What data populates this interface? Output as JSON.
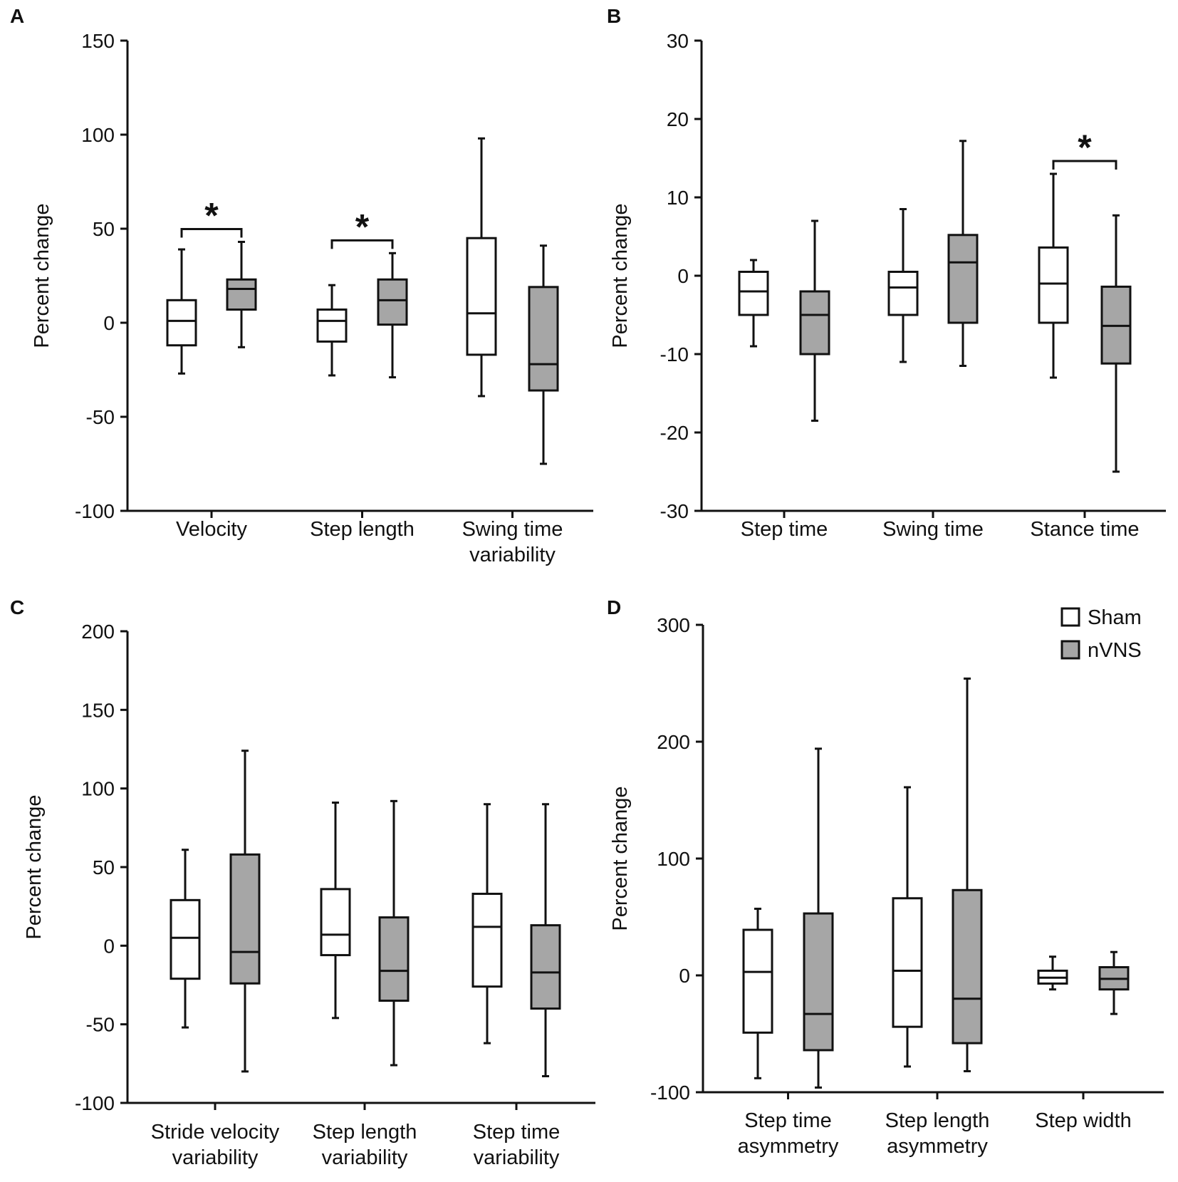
{
  "colors": {
    "sham": "#ffffff",
    "nvns": "#a6a6a6",
    "stroke": "#111111"
  },
  "legend": {
    "items": [
      {
        "name": "Sham",
        "color": "#ffffff"
      },
      {
        "name": "nVNS",
        "color": "#a6a6a6"
      }
    ]
  },
  "chart_data": [
    {
      "panel": "A",
      "type": "box",
      "ylabel": "Percent change",
      "ylim": [
        -100,
        150
      ],
      "yticks": [
        150,
        100,
        50,
        0,
        -50,
        -100
      ],
      "groups": [
        {
          "label": [
            "Velocity"
          ],
          "sham": {
            "min": -27,
            "q1": -12,
            "median": 1,
            "q3": 12,
            "max": 39
          },
          "nvns": {
            "min": -13,
            "q1": 7,
            "median": 18,
            "q3": 23,
            "max": 43
          },
          "significance": "*"
        },
        {
          "label": [
            "Step length"
          ],
          "sham": {
            "min": -28,
            "q1": -10,
            "median": 1,
            "q3": 7,
            "max": 20
          },
          "nvns": {
            "min": -29,
            "q1": -1,
            "median": 12,
            "q3": 23,
            "max": 37
          },
          "significance": "*"
        },
        {
          "label": [
            "Swing time",
            "variability"
          ],
          "sham": {
            "min": -39,
            "q1": -17,
            "median": 5,
            "q3": 45,
            "max": 98
          },
          "nvns": {
            "min": -75,
            "q1": -36,
            "median": -22,
            "q3": 19,
            "max": 41
          },
          "significance": ""
        }
      ]
    },
    {
      "panel": "B",
      "type": "box",
      "ylabel": "Percent change",
      "ylim": [
        -30,
        30
      ],
      "yticks": [
        30,
        20,
        10,
        0,
        -10,
        -20,
        -30
      ],
      "groups": [
        {
          "label": [
            "Step time"
          ],
          "sham": {
            "min": -9,
            "q1": -5,
            "median": -2,
            "q3": 0.5,
            "max": 2
          },
          "nvns": {
            "min": -18.5,
            "q1": -10,
            "median": -5,
            "q3": -2,
            "max": 7
          },
          "significance": ""
        },
        {
          "label": [
            "Swing time"
          ],
          "sham": {
            "min": -11,
            "q1": -5,
            "median": -1.5,
            "q3": 0.5,
            "max": 8.5
          },
          "nvns": {
            "min": -11.5,
            "q1": -6,
            "median": 1.7,
            "q3": 5.2,
            "max": 17.2
          },
          "significance": ""
        },
        {
          "label": [
            "Stance time"
          ],
          "sham": {
            "min": -13,
            "q1": -6,
            "median": -1,
            "q3": 3.6,
            "max": 13
          },
          "nvns": {
            "min": -25,
            "q1": -11.2,
            "median": -6.4,
            "q3": -1.4,
            "max": 7.7
          },
          "significance": "*"
        }
      ]
    },
    {
      "panel": "C",
      "type": "box",
      "ylabel": "Percent change",
      "ylim": [
        -100,
        200
      ],
      "yticks": [
        200,
        150,
        100,
        50,
        0,
        -50,
        -100
      ],
      "groups": [
        {
          "label": [
            "Stride velocity",
            "variability"
          ],
          "sham": {
            "min": -52,
            "q1": -21,
            "median": 5,
            "q3": 29,
            "max": 61
          },
          "nvns": {
            "min": -80,
            "q1": -24,
            "median": -4,
            "q3": 58,
            "max": 124
          },
          "significance": ""
        },
        {
          "label": [
            "Step length",
            "variability"
          ],
          "sham": {
            "min": -46,
            "q1": -6,
            "median": 7,
            "q3": 36,
            "max": 91
          },
          "nvns": {
            "min": -76,
            "q1": -35,
            "median": -16,
            "q3": 18,
            "max": 92
          },
          "significance": ""
        },
        {
          "label": [
            "Step time",
            "variability"
          ],
          "sham": {
            "min": -62,
            "q1": -26,
            "median": 12,
            "q3": 33,
            "max": 90
          },
          "nvns": {
            "min": -83,
            "q1": -40,
            "median": -17,
            "q3": 13,
            "max": 90
          },
          "significance": ""
        }
      ]
    },
    {
      "panel": "D",
      "type": "box",
      "ylabel": "Percent change",
      "ylim": [
        -100,
        300
      ],
      "yticks": [
        300,
        200,
        100,
        0,
        -100
      ],
      "legend_position": "top-right",
      "groups": [
        {
          "label": [
            "Step time",
            "asymmetry"
          ],
          "sham": {
            "min": -88,
            "q1": -49,
            "median": 3,
            "q3": 39,
            "max": 57
          },
          "nvns": {
            "min": -96,
            "q1": -64,
            "median": -33,
            "q3": 53,
            "max": 194
          },
          "significance": ""
        },
        {
          "label": [
            "Step length",
            "asymmetry"
          ],
          "sham": {
            "min": -78,
            "q1": -44,
            "median": 4,
            "q3": 66,
            "max": 161
          },
          "nvns": {
            "min": -82,
            "q1": -58,
            "median": -20,
            "q3": 73,
            "max": 254
          },
          "significance": ""
        },
        {
          "label": [
            "Step width"
          ],
          "sham": {
            "min": -12,
            "q1": -7,
            "median": -2,
            "q3": 4,
            "max": 16
          },
          "nvns": {
            "min": -33,
            "q1": -12,
            "median": -3,
            "q3": 7,
            "max": 20
          },
          "significance": ""
        }
      ]
    }
  ]
}
